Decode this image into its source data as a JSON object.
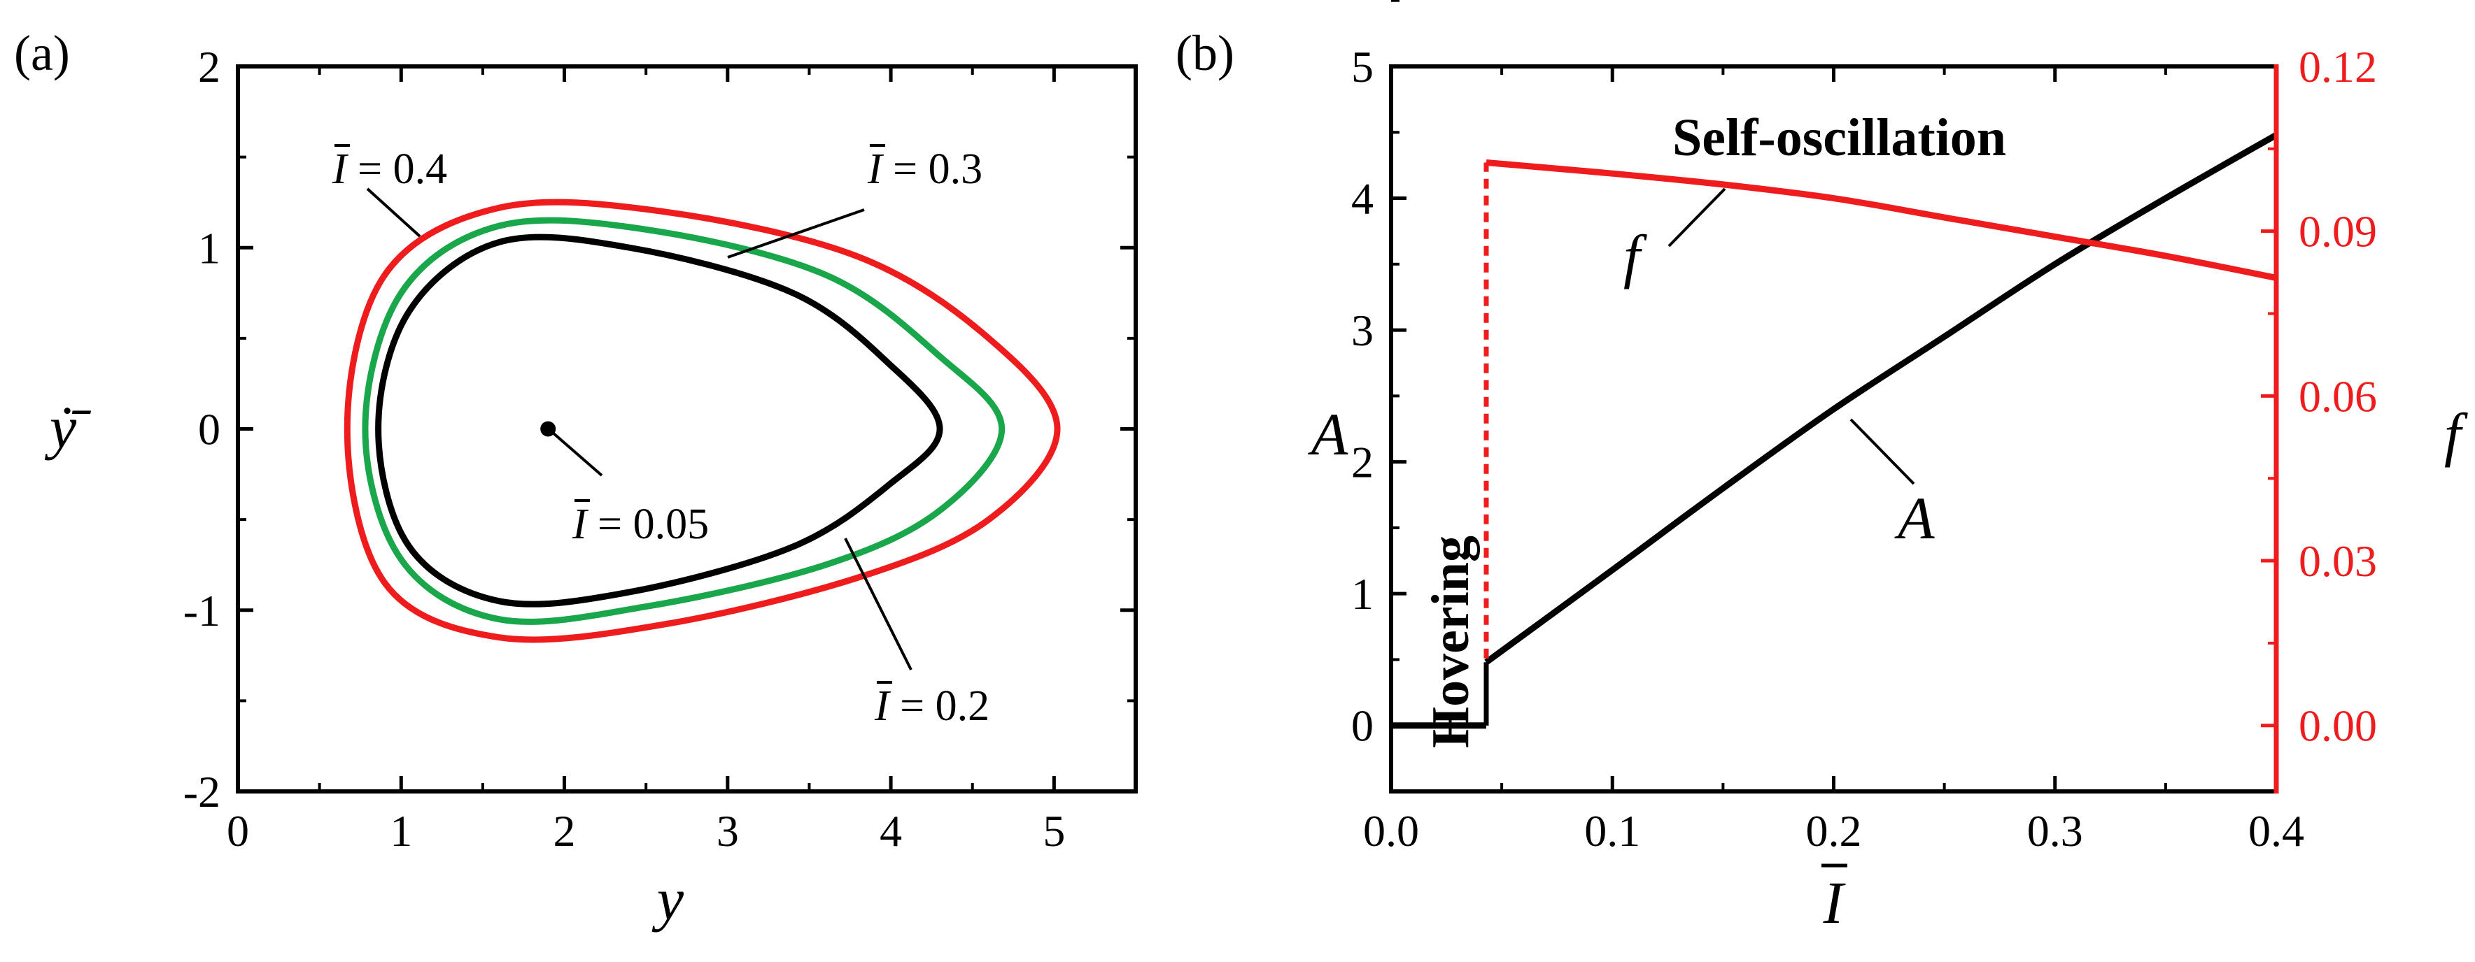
{
  "chart_data": [
    {
      "panel": "(a)",
      "type": "line",
      "title": "",
      "xlabel": "y",
      "ylabel": "ẏ̄",
      "xlim": [
        0,
        5.5
      ],
      "ylim": [
        -2,
        2
      ],
      "xticks": [
        "0",
        "1",
        "2",
        "3",
        "4",
        "5"
      ],
      "yticks": [
        "-2",
        "-1",
        "0",
        "1",
        "2"
      ],
      "series": [
        {
          "name": "I = 0.4",
          "color": "#ee1c1c",
          "x": [
            5.02,
            4.6,
            3.8,
            2.6,
            1.6,
            0.9,
            0.67,
            0.9,
            1.6,
            2.6,
            3.8,
            4.6,
            5.02
          ],
          "y": [
            0.0,
            -0.5,
            -0.82,
            -1.08,
            -1.15,
            -0.85,
            0.0,
            0.85,
            1.22,
            1.2,
            0.95,
            0.5,
            0.0
          ]
        },
        {
          "name": "I = 0.3",
          "color": "#1aa64a",
          "x": [
            4.68,
            4.3,
            3.6,
            2.5,
            1.6,
            1.0,
            0.78,
            1.0,
            1.6,
            2.5,
            3.6,
            4.3,
            4.68
          ],
          "y": [
            0.0,
            -0.45,
            -0.75,
            -0.98,
            -1.05,
            -0.72,
            0.0,
            0.75,
            1.12,
            1.1,
            0.85,
            0.4,
            0.0
          ]
        },
        {
          "name": "I = 0.2",
          "color": "#000000",
          "x": [
            4.3,
            4.0,
            3.4,
            2.4,
            1.6,
            1.05,
            0.86,
            1.05,
            1.6,
            2.4,
            3.4,
            4.0,
            4.3
          ],
          "y": [
            0.0,
            -0.3,
            -0.65,
            -0.9,
            -0.95,
            -0.65,
            0.0,
            0.65,
            1.03,
            1.0,
            0.75,
            0.35,
            0.0
          ]
        }
      ],
      "points": [
        {
          "name": "I = 0.05",
          "x": 1.9,
          "y": 0.0
        }
      ],
      "annotations": [
        {
          "prefix": "I",
          "text": " = 0.4"
        },
        {
          "prefix": "I",
          "text": "  = 0.3"
        },
        {
          "prefix": "I",
          "text": " = 0.05"
        },
        {
          "prefix": "I",
          "text": " = 0.2"
        }
      ]
    },
    {
      "panel": "(b)",
      "type": "line",
      "title": "",
      "xlabel": "I",
      "ylabel_left": "A",
      "ylabel_right": "f",
      "xlim": [
        0,
        0.4
      ],
      "ylim_left": [
        -0.5,
        5
      ],
      "ylim_right": [
        -0.012,
        0.12
      ],
      "xticks": [
        "0.0",
        "0.1",
        "0.2",
        "0.3",
        "0.4"
      ],
      "yticks_left": [
        "0",
        "1",
        "2",
        "3",
        "4",
        "5"
      ],
      "yticks_right": [
        "0.00",
        "0.03",
        "0.06",
        "0.09",
        "0.12"
      ],
      "series": [
        {
          "name": "A (hovering)",
          "color": "#000000",
          "axis": "left",
          "x": [
            0.0,
            0.043
          ],
          "y": [
            0.0,
            0.0
          ]
        },
        {
          "name": "A",
          "color": "#000000",
          "axis": "left",
          "x": [
            0.043,
            0.1,
            0.15,
            0.2,
            0.25,
            0.3,
            0.35,
            0.4
          ],
          "y": [
            0.48,
            1.18,
            1.8,
            2.4,
            2.95,
            3.5,
            4.0,
            4.48
          ]
        },
        {
          "name": "f",
          "color": "#ee1c1c",
          "axis": "right",
          "x": [
            0.043,
            0.1,
            0.15,
            0.2,
            0.25,
            0.3,
            0.35,
            0.4
          ],
          "y": [
            0.1025,
            0.1005,
            0.0985,
            0.096,
            0.0925,
            0.089,
            0.0855,
            0.0815
          ]
        },
        {
          "name": "f (transition)",
          "color": "#ee1c1c",
          "axis": "right",
          "dashed": true,
          "x": [
            0.043,
            0.043
          ],
          "y": [
            0.0,
            0.1025
          ]
        }
      ],
      "annotations": [
        {
          "text": "Self-oscillation"
        },
        {
          "text": "Hovering"
        },
        {
          "text": "f"
        },
        {
          "text": "A"
        }
      ]
    }
  ]
}
